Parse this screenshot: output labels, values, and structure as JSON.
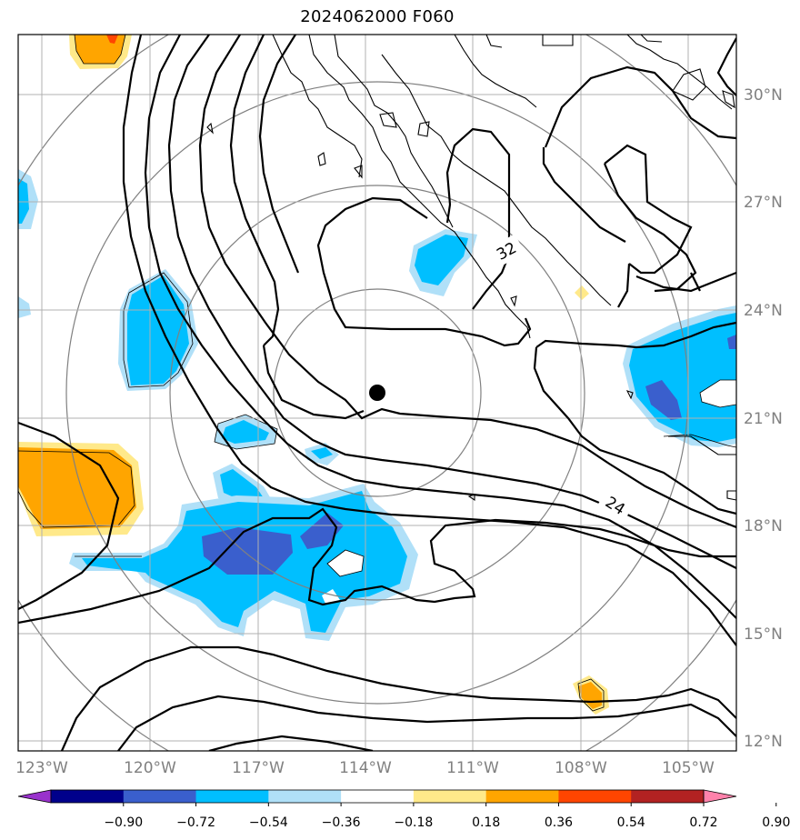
{
  "title": "2024062000 F060",
  "latitude_labels": [
    "30°N",
    "27°N",
    "24°N",
    "21°N",
    "18°N",
    "15°N",
    "12°N"
  ],
  "longitude_labels": [
    "123°W",
    "120°W",
    "117°W",
    "114°W",
    "111°W",
    "108°W",
    "105°W"
  ],
  "contour_labels": [
    "32",
    "24"
  ],
  "colorbar": {
    "ticks": [
      "−0.90",
      "−0.72",
      "−0.54",
      "−0.36",
      "−0.18",
      "0.18",
      "0.36",
      "0.54",
      "0.72",
      "0.90"
    ],
    "colors": [
      "#9932cc",
      "#00008b",
      "#3a5fcd",
      "#00bfff",
      "#b0e0f8",
      "#ffffff",
      "#ffe98a",
      "#ffa500",
      "#ff4500",
      "#b22222",
      "#ff82ab"
    ]
  },
  "map_extent": {
    "lon_min": -124,
    "lon_max": -104,
    "lat_min": 11.8,
    "lat_max": 31.8
  },
  "storm_center_marker": "black-dot",
  "range_rings": 4
}
